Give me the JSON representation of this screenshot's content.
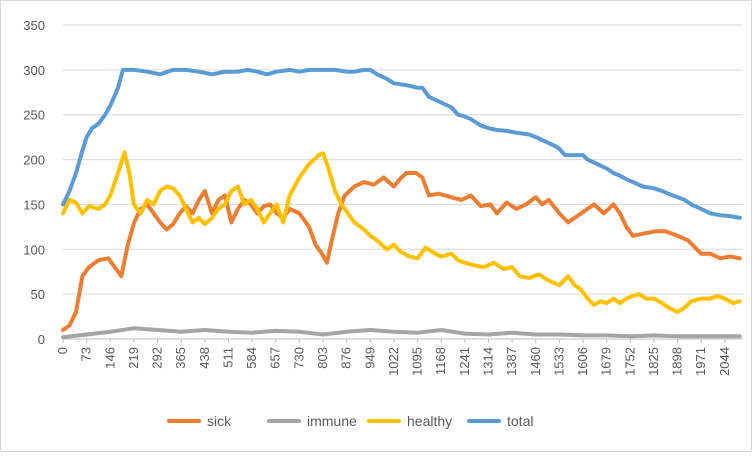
{
  "chart_data": {
    "type": "line",
    "title": "",
    "xlabel": "",
    "ylabel": "",
    "ylim": [
      0,
      350
    ],
    "yticks": [
      0,
      50,
      100,
      150,
      200,
      250,
      300,
      350
    ],
    "xlim": [
      0,
      2100
    ],
    "xticks": [
      0,
      73,
      146,
      219,
      292,
      365,
      438,
      511,
      584,
      657,
      730,
      803,
      876,
      949,
      1022,
      1095,
      1168,
      1241,
      1314,
      1387,
      1460,
      1533,
      1606,
      1679,
      1752,
      1825,
      1898,
      1971,
      2044
    ],
    "grid": "horizontal",
    "legend_position": "bottom",
    "series": [
      {
        "name": "sick",
        "color": "#ed7d31",
        "points": [
          [
            0,
            10
          ],
          [
            20,
            15
          ],
          [
            40,
            30
          ],
          [
            60,
            70
          ],
          [
            80,
            80
          ],
          [
            110,
            88
          ],
          [
            140,
            90
          ],
          [
            160,
            80
          ],
          [
            180,
            70
          ],
          [
            200,
            105
          ],
          [
            220,
            130
          ],
          [
            240,
            145
          ],
          [
            260,
            150
          ],
          [
            280,
            140
          ],
          [
            300,
            130
          ],
          [
            320,
            122
          ],
          [
            340,
            128
          ],
          [
            360,
            140
          ],
          [
            380,
            148
          ],
          [
            400,
            140
          ],
          [
            420,
            155
          ],
          [
            438,
            165
          ],
          [
            460,
            140
          ],
          [
            480,
            155
          ],
          [
            500,
            160
          ],
          [
            520,
            130
          ],
          [
            540,
            145
          ],
          [
            560,
            155
          ],
          [
            580,
            150
          ],
          [
            600,
            140
          ],
          [
            620,
            148
          ],
          [
            640,
            150
          ],
          [
            660,
            140
          ],
          [
            680,
            135
          ],
          [
            700,
            145
          ],
          [
            730,
            140
          ],
          [
            760,
            125
          ],
          [
            780,
            105
          ],
          [
            800,
            95
          ],
          [
            815,
            85
          ],
          [
            830,
            110
          ],
          [
            850,
            140
          ],
          [
            870,
            160
          ],
          [
            900,
            170
          ],
          [
            930,
            175
          ],
          [
            960,
            172
          ],
          [
            990,
            180
          ],
          [
            1022,
            170
          ],
          [
            1040,
            178
          ],
          [
            1060,
            185
          ],
          [
            1090,
            185
          ],
          [
            1110,
            180
          ],
          [
            1130,
            160
          ],
          [
            1160,
            162
          ],
          [
            1200,
            158
          ],
          [
            1230,
            155
          ],
          [
            1260,
            160
          ],
          [
            1290,
            148
          ],
          [
            1320,
            150
          ],
          [
            1340,
            140
          ],
          [
            1370,
            152
          ],
          [
            1400,
            145
          ],
          [
            1430,
            150
          ],
          [
            1460,
            158
          ],
          [
            1480,
            150
          ],
          [
            1500,
            155
          ],
          [
            1533,
            140
          ],
          [
            1560,
            130
          ],
          [
            1600,
            140
          ],
          [
            1640,
            150
          ],
          [
            1670,
            140
          ],
          [
            1700,
            150
          ],
          [
            1720,
            140
          ],
          [
            1740,
            125
          ],
          [
            1760,
            115
          ],
          [
            1800,
            118
          ],
          [
            1830,
            120
          ],
          [
            1860,
            120
          ],
          [
            1898,
            115
          ],
          [
            1930,
            110
          ],
          [
            1971,
            95
          ],
          [
            2000,
            95
          ],
          [
            2030,
            90
          ],
          [
            2060,
            92
          ],
          [
            2090,
            90
          ]
        ]
      },
      {
        "name": "immune",
        "color": "#a5a5a5",
        "points": [
          [
            0,
            2
          ],
          [
            73,
            5
          ],
          [
            146,
            8
          ],
          [
            219,
            12
          ],
          [
            292,
            10
          ],
          [
            365,
            8
          ],
          [
            438,
            10
          ],
          [
            511,
            8
          ],
          [
            584,
            7
          ],
          [
            657,
            9
          ],
          [
            730,
            8
          ],
          [
            803,
            5
          ],
          [
            876,
            8
          ],
          [
            949,
            10
          ],
          [
            1022,
            8
          ],
          [
            1095,
            7
          ],
          [
            1168,
            10
          ],
          [
            1241,
            6
          ],
          [
            1314,
            5
          ],
          [
            1387,
            7
          ],
          [
            1460,
            5
          ],
          [
            1533,
            5
          ],
          [
            1606,
            4
          ],
          [
            1679,
            4
          ],
          [
            1752,
            3
          ],
          [
            1825,
            4
          ],
          [
            1898,
            3
          ],
          [
            1971,
            3
          ],
          [
            2044,
            3
          ],
          [
            2090,
            3
          ]
        ]
      },
      {
        "name": "healthy",
        "color": "#ffc000",
        "points": [
          [
            0,
            140
          ],
          [
            20,
            155
          ],
          [
            40,
            152
          ],
          [
            60,
            140
          ],
          [
            80,
            148
          ],
          [
            110,
            145
          ],
          [
            130,
            150
          ],
          [
            146,
            160
          ],
          [
            170,
            185
          ],
          [
            190,
            208
          ],
          [
            205,
            185
          ],
          [
            219,
            150
          ],
          [
            240,
            140
          ],
          [
            260,
            155
          ],
          [
            280,
            150
          ],
          [
            300,
            165
          ],
          [
            320,
            170
          ],
          [
            340,
            168
          ],
          [
            360,
            160
          ],
          [
            380,
            145
          ],
          [
            400,
            130
          ],
          [
            420,
            135
          ],
          [
            438,
            128
          ],
          [
            460,
            135
          ],
          [
            480,
            145
          ],
          [
            500,
            150
          ],
          [
            520,
            165
          ],
          [
            540,
            170
          ],
          [
            560,
            150
          ],
          [
            580,
            155
          ],
          [
            600,
            145
          ],
          [
            620,
            130
          ],
          [
            640,
            140
          ],
          [
            660,
            150
          ],
          [
            680,
            130
          ],
          [
            700,
            160
          ],
          [
            730,
            180
          ],
          [
            760,
            195
          ],
          [
            790,
            205
          ],
          [
            803,
            207
          ],
          [
            820,
            190
          ],
          [
            840,
            165
          ],
          [
            860,
            150
          ],
          [
            880,
            140
          ],
          [
            900,
            130
          ],
          [
            930,
            122
          ],
          [
            949,
            115
          ],
          [
            970,
            110
          ],
          [
            1000,
            100
          ],
          [
            1022,
            105
          ],
          [
            1040,
            98
          ],
          [
            1070,
            92
          ],
          [
            1095,
            90
          ],
          [
            1120,
            102
          ],
          [
            1150,
            95
          ],
          [
            1168,
            92
          ],
          [
            1200,
            95
          ],
          [
            1220,
            88
          ],
          [
            1241,
            85
          ],
          [
            1270,
            82
          ],
          [
            1300,
            80
          ],
          [
            1330,
            85
          ],
          [
            1360,
            78
          ],
          [
            1387,
            80
          ],
          [
            1410,
            70
          ],
          [
            1440,
            68
          ],
          [
            1470,
            72
          ],
          [
            1500,
            65
          ],
          [
            1533,
            60
          ],
          [
            1560,
            70
          ],
          [
            1580,
            60
          ],
          [
            1600,
            55
          ],
          [
            1620,
            45
          ],
          [
            1640,
            38
          ],
          [
            1660,
            42
          ],
          [
            1679,
            40
          ],
          [
            1700,
            45
          ],
          [
            1720,
            40
          ],
          [
            1740,
            45
          ],
          [
            1760,
            48
          ],
          [
            1780,
            50
          ],
          [
            1800,
            45
          ],
          [
            1825,
            45
          ],
          [
            1850,
            40
          ],
          [
            1870,
            35
          ],
          [
            1898,
            30
          ],
          [
            1920,
            35
          ],
          [
            1940,
            42
          ],
          [
            1971,
            45
          ],
          [
            2000,
            45
          ],
          [
            2020,
            48
          ],
          [
            2044,
            45
          ],
          [
            2070,
            40
          ],
          [
            2090,
            42
          ]
        ]
      },
      {
        "name": "total",
        "color": "#5b9bd5",
        "points": [
          [
            0,
            150
          ],
          [
            20,
            165
          ],
          [
            40,
            185
          ],
          [
            60,
            210
          ],
          [
            73,
            225
          ],
          [
            90,
            235
          ],
          [
            110,
            240
          ],
          [
            130,
            250
          ],
          [
            146,
            260
          ],
          [
            170,
            280
          ],
          [
            185,
            300
          ],
          [
            219,
            300
          ],
          [
            260,
            298
          ],
          [
            300,
            295
          ],
          [
            340,
            300
          ],
          [
            380,
            300
          ],
          [
            420,
            298
          ],
          [
            460,
            295
          ],
          [
            500,
            298
          ],
          [
            540,
            298
          ],
          [
            570,
            300
          ],
          [
            600,
            298
          ],
          [
            630,
            295
          ],
          [
            660,
            298
          ],
          [
            700,
            300
          ],
          [
            730,
            298
          ],
          [
            760,
            300
          ],
          [
            800,
            300
          ],
          [
            840,
            300
          ],
          [
            876,
            298
          ],
          [
            900,
            298
          ],
          [
            930,
            300
          ],
          [
            949,
            300
          ],
          [
            970,
            295
          ],
          [
            1000,
            290
          ],
          [
            1022,
            285
          ],
          [
            1060,
            283
          ],
          [
            1095,
            280
          ],
          [
            1110,
            280
          ],
          [
            1130,
            270
          ],
          [
            1160,
            265
          ],
          [
            1200,
            258
          ],
          [
            1220,
            250
          ],
          [
            1241,
            248
          ],
          [
            1260,
            245
          ],
          [
            1290,
            238
          ],
          [
            1314,
            235
          ],
          [
            1340,
            233
          ],
          [
            1370,
            232
          ],
          [
            1400,
            230
          ],
          [
            1440,
            228
          ],
          [
            1460,
            225
          ],
          [
            1490,
            220
          ],
          [
            1520,
            215
          ],
          [
            1533,
            212
          ],
          [
            1550,
            205
          ],
          [
            1580,
            205
          ],
          [
            1606,
            205
          ],
          [
            1620,
            200
          ],
          [
            1650,
            195
          ],
          [
            1679,
            190
          ],
          [
            1700,
            185
          ],
          [
            1720,
            182
          ],
          [
            1740,
            178
          ],
          [
            1760,
            175
          ],
          [
            1790,
            170
          ],
          [
            1825,
            168
          ],
          [
            1850,
            165
          ],
          [
            1870,
            162
          ],
          [
            1898,
            158
          ],
          [
            1920,
            155
          ],
          [
            1940,
            150
          ],
          [
            1971,
            145
          ],
          [
            2000,
            140
          ],
          [
            2030,
            138
          ],
          [
            2060,
            137
          ],
          [
            2090,
            135
          ]
        ]
      }
    ]
  }
}
